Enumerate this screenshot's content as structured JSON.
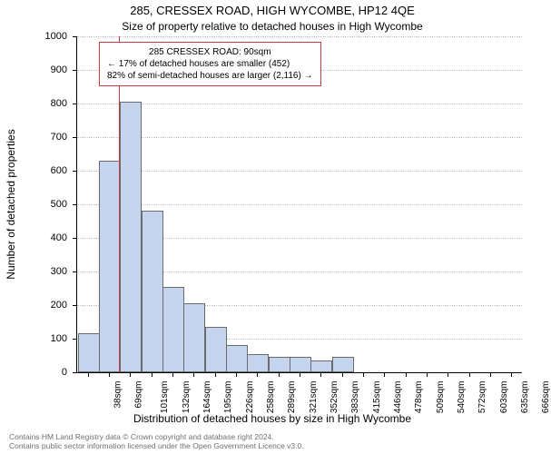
{
  "title_main": "285, CRESSEX ROAD, HIGH WYCOMBE, HP12 4QE",
  "title_sub": "Size of property relative to detached houses in High Wycombe",
  "y_axis_label": "Number of detached properties",
  "x_axis_label": "Distribution of detached houses by size in High Wycombe",
  "footer_line1": "Contains HM Land Registry data © Crown copyright and database right 2024.",
  "footer_line2": "Contains public sector information licensed under the Open Government Licence v3.0.",
  "chart": {
    "ylim": [
      0,
      1000
    ],
    "ytick_step": 100,
    "yticks": [
      0,
      100,
      200,
      300,
      400,
      500,
      600,
      700,
      800,
      900,
      1000
    ],
    "categories": [
      "38sqm",
      "69sqm",
      "101sqm",
      "132sqm",
      "164sqm",
      "195sqm",
      "226sqm",
      "258sqm",
      "289sqm",
      "321sqm",
      "352sqm",
      "383sqm",
      "415sqm",
      "446sqm",
      "478sqm",
      "509sqm",
      "540sqm",
      "572sqm",
      "603sqm",
      "635sqm",
      "666sqm"
    ],
    "values": [
      110,
      625,
      800,
      475,
      250,
      200,
      130,
      75,
      50,
      40,
      40,
      30,
      40,
      0,
      0,
      0,
      0,
      0,
      0,
      0,
      0
    ],
    "bar_fill": "#c5d4ef",
    "bar_stroke": "#6b6b6b",
    "background": "#ffffff",
    "grid_color": "#bfbfbf",
    "marker_color": "#c04040",
    "marker_category_index": 2,
    "annotation": {
      "line1": "285 CRESSEX ROAD: 90sqm",
      "line2": "← 17% of detached houses are smaller (452)",
      "line3": "82% of semi-detached houses are larger (2,116) →",
      "border_color": "#c04040",
      "bg": "#ffffff",
      "fontsize": 10
    },
    "title_fontsize": 13,
    "subtitle_fontsize": 12,
    "axis_label_fontsize": 12,
    "tick_fontsize": 11,
    "xtick_fontsize": 10
  }
}
